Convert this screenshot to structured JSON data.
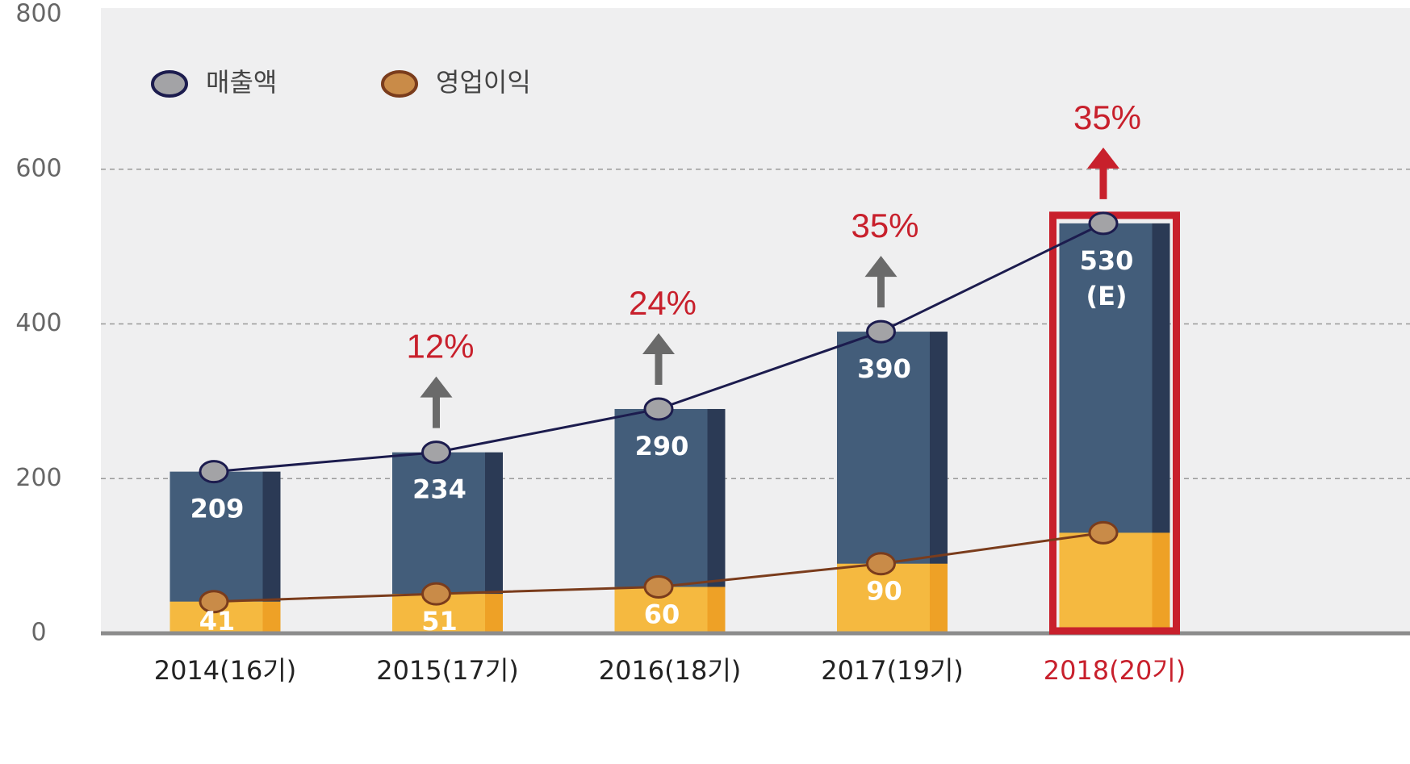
{
  "chart_data": {
    "type": "bar",
    "categories": [
      "2014(16기)",
      "2015(17기)",
      "2016(18기)",
      "2017(19기)",
      "2018(20기)"
    ],
    "series": [
      {
        "name": "매출액",
        "color": "#435d7a",
        "side_color": "#2b3a55",
        "line_color": "#1c1c4e",
        "marker_color": "#a3a3a6",
        "values": [
          209,
          234,
          290,
          390,
          530
        ],
        "value_labels": [
          "209",
          "234",
          "290",
          "390",
          [
            "530",
            "(E)"
          ]
        ]
      },
      {
        "name": "영업이익",
        "color": "#f5b940",
        "side_color": "#eea126",
        "line_color": "#7a3c1c",
        "marker_color": "#c98b48",
        "values": [
          41,
          51,
          60,
          90,
          130
        ],
        "value_labels": [
          "41",
          "51",
          "60",
          "90",
          null
        ]
      }
    ],
    "growth_labels": [
      null,
      "12%",
      "24%",
      "35%",
      "35%"
    ],
    "growth_color": "#c8202c",
    "arrow_color": "#6a6a6a",
    "highlight_index": 4,
    "highlight_color": "#c8202c",
    "ylim": [
      0,
      800
    ],
    "yticks": [
      0,
      200,
      400,
      600,
      800
    ],
    "grid": true,
    "legend": "top-left"
  }
}
